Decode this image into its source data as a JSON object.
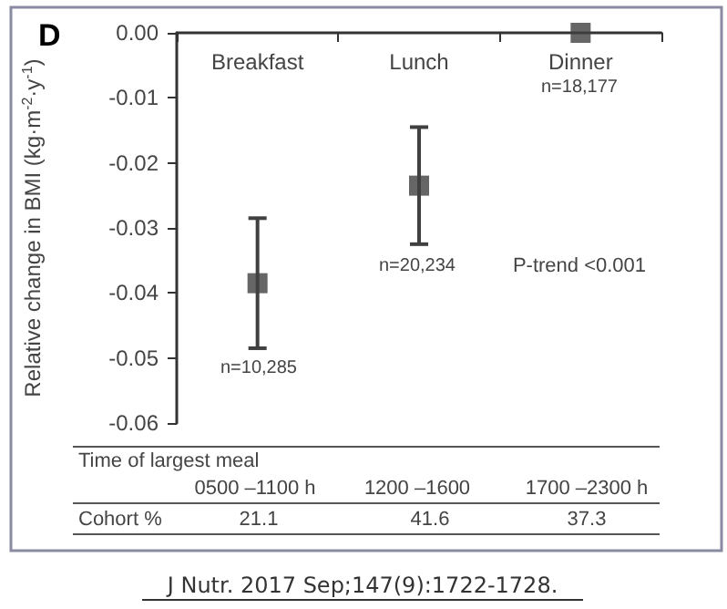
{
  "chart_data": {
    "type": "scatter",
    "title": "D",
    "ylabel": "Relative change in BMI (kg·m$^{-2}$·y$^{-1}$)",
    "categories": [
      "Breakfast",
      "Lunch",
      "Dinner"
    ],
    "values": [
      -0.0385,
      -0.0235,
      0
    ],
    "errors": [
      [
        -0.0485,
        -0.0285
      ],
      [
        -0.0325,
        -0.0145
      ],
      null
    ],
    "color": "#404040",
    "marker": "square",
    "grid": false,
    "ylim": [
      -0.06,
      0
    ],
    "yticks": [
      {
        "value": -0.06,
        "label": "-0.06"
      },
      {
        "value": -0.05,
        "label": "-0.05"
      },
      {
        "value": -0.04,
        "label": "-0.04"
      },
      {
        "value": -0.03,
        "label": "-0.03"
      },
      {
        "value": -0.02,
        "label": "-0.02"
      },
      {
        "value": -0.01,
        "label": "-0.01"
      },
      {
        "value": 0,
        "label": "0.00"
      }
    ],
    "annotations": [
      "n=10,285",
      "n=20,234",
      "n=18,177",
      "P-trend <0.001",
      "Time of largest meal",
      "0500 –1100 h",
      "1200 –1600",
      "1700 –2300 h",
      "Cohort %",
      "21.1",
      "41.6",
      "37.3",
      "J Nutr. 2017 Sep;147(9):1722-1728."
    ]
  }
}
